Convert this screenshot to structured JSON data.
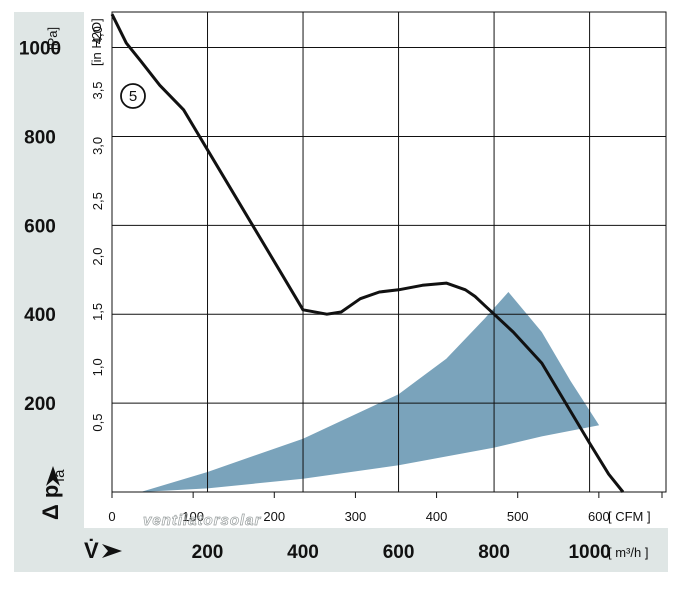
{
  "colors": {
    "panel": "#dfe6e5",
    "grid": "#111111",
    "curve": "#111111",
    "operating_range": "#7aa3bb"
  },
  "chart_data": {
    "type": "line",
    "curve_label": "5",
    "watermark": "ventilatorsolar",
    "y_left": {
      "unit": "[Pa]",
      "ticks": [
        "200",
        "400",
        "600",
        "800",
        "1000"
      ],
      "ylim": [
        0,
        1080
      ]
    },
    "y_inner": {
      "unit": "[in H2O]",
      "ticks": [
        "0,5",
        "1,0",
        "1,5",
        "2,0",
        "2,5",
        "3,0",
        "3,5",
        "4,0"
      ]
    },
    "x_top": {
      "unit": "[ CFM ]",
      "ticks": [
        "0",
        "100",
        "200",
        "300",
        "400",
        "500",
        "600"
      ],
      "xlim": [
        0,
        1160
      ]
    },
    "x_bottom": {
      "symbol": "V̇",
      "unit": "[ m³/h ]",
      "ticks": [
        "200",
        "400",
        "600",
        "800",
        "1000"
      ]
    },
    "y_symbol": "Δ p",
    "y_subscript": "fa",
    "series": [
      {
        "x": [
          0,
          30,
          60,
          100,
          150,
          200,
          250,
          300,
          350,
          400,
          450,
          480,
          500,
          520,
          560,
          600,
          650,
          700,
          740,
          760,
          780,
          800,
          840,
          900,
          950,
          1000,
          1040,
          1070
        ],
        "y": [
          1075,
          1010,
          970,
          915,
          860,
          770,
          680,
          590,
          500,
          410,
          400,
          405,
          420,
          435,
          450,
          455,
          465,
          470,
          455,
          440,
          420,
          400,
          360,
          290,
          200,
          110,
          40,
          0
        ]
      }
    ],
    "operating_range": {
      "upper": [
        {
          "x": 60,
          "y": 0
        },
        {
          "x": 200,
          "y": 45
        },
        {
          "x": 400,
          "y": 120
        },
        {
          "x": 600,
          "y": 220
        },
        {
          "x": 700,
          "y": 300
        },
        {
          "x": 780,
          "y": 390
        },
        {
          "x": 830,
          "y": 450
        }
      ],
      "right": [
        {
          "x": 830,
          "y": 450
        },
        {
          "x": 900,
          "y": 360
        },
        {
          "x": 960,
          "y": 250
        },
        {
          "x": 1020,
          "y": 150
        }
      ],
      "lower": [
        {
          "x": 1020,
          "y": 150
        },
        {
          "x": 900,
          "y": 125
        },
        {
          "x": 800,
          "y": 100
        },
        {
          "x": 600,
          "y": 60
        },
        {
          "x": 400,
          "y": 30
        },
        {
          "x": 200,
          "y": 8
        },
        {
          "x": 60,
          "y": 0
        }
      ]
    }
  }
}
